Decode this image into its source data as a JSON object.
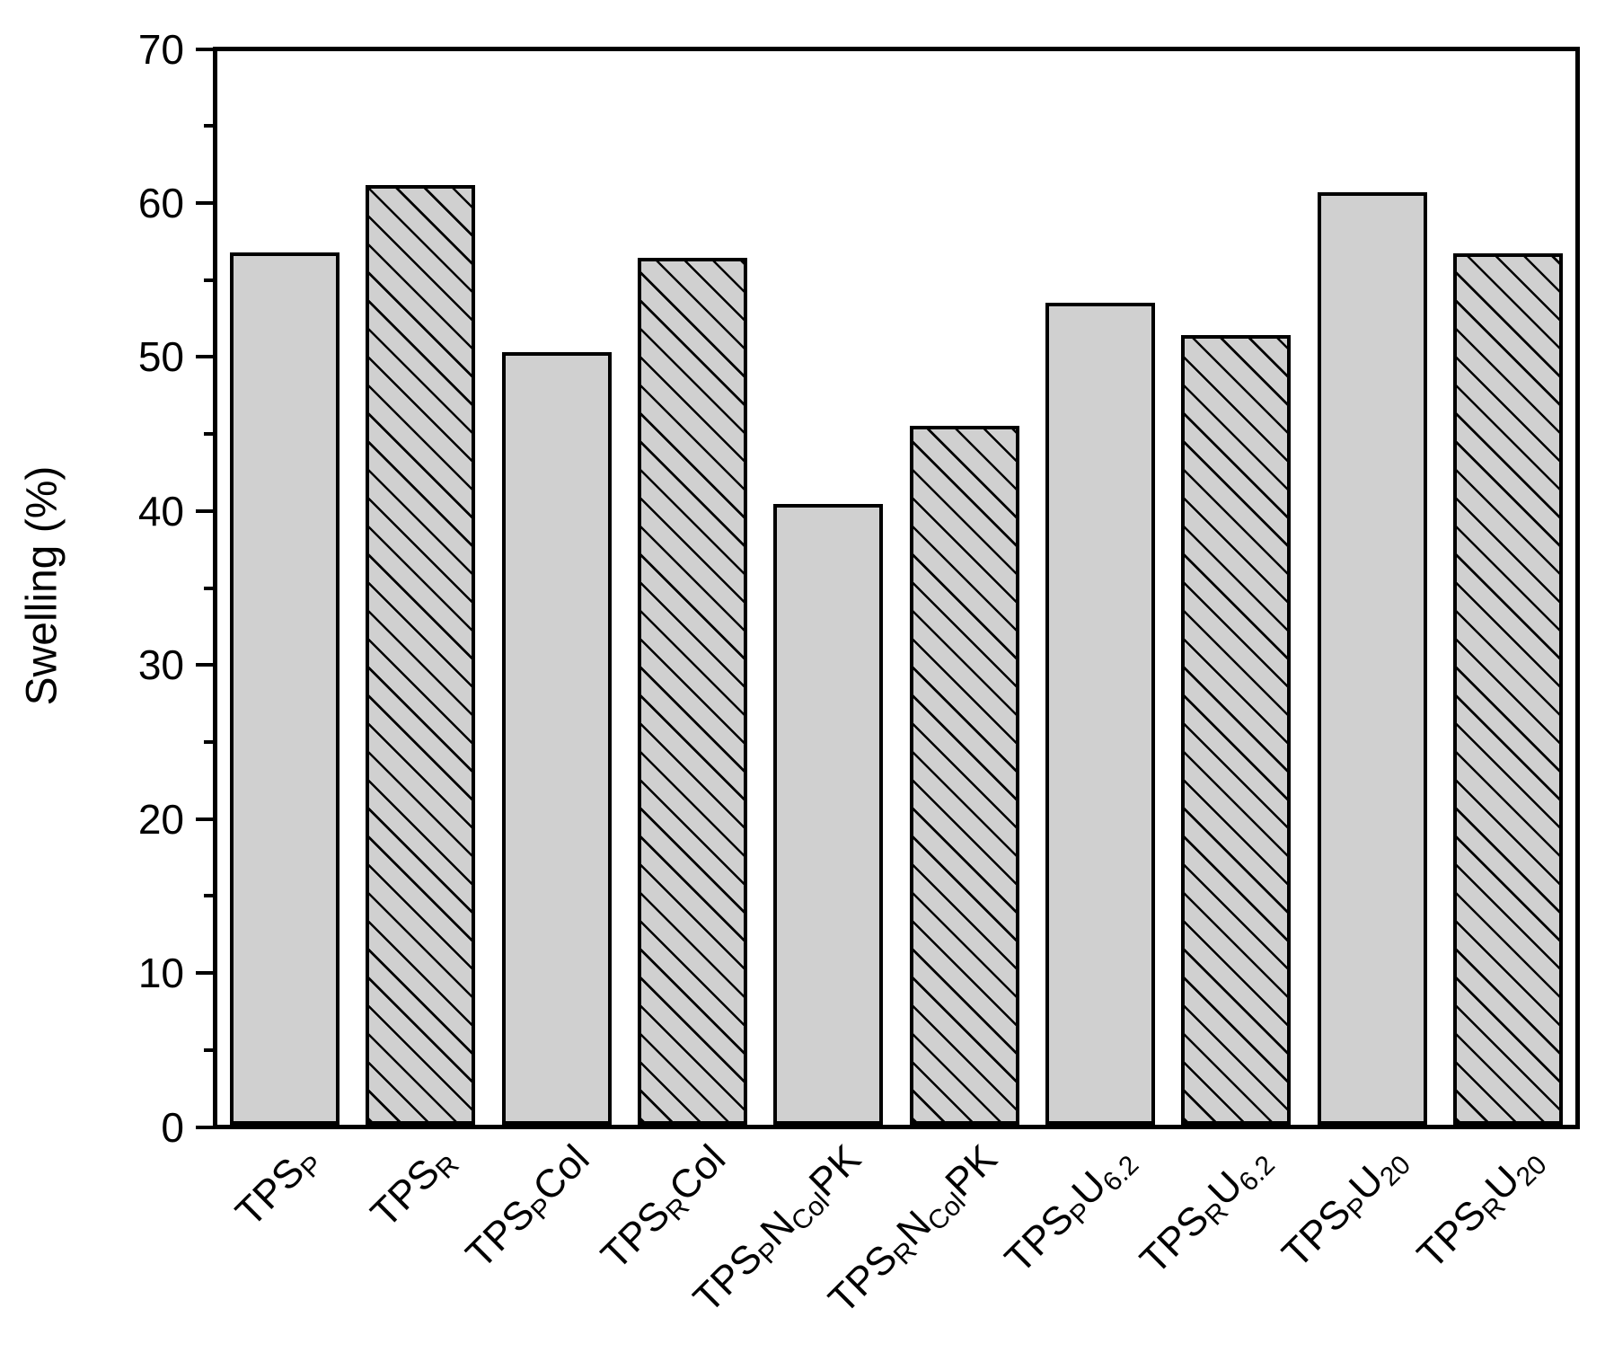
{
  "chart_data": {
    "type": "bar",
    "title": "",
    "xlabel": "",
    "ylabel": "Swelling (%)",
    "ylim": [
      0,
      70
    ],
    "ytick_major_step": 10,
    "ytick_minor_step": 5,
    "ytick_labels": [
      "0",
      "10",
      "20",
      "30",
      "40",
      "50",
      "60",
      "70"
    ],
    "grid": false,
    "legend_position": "none",
    "bar_fill_color": "#d0d0d0",
    "bar_edge_color": "#000000",
    "hatch_color": "#000000",
    "hatch_style": "diagonal-down",
    "categories": [
      "TPS_P",
      "TPS_R",
      "TPS_P Col",
      "TPS_R Col",
      "TPS_P N_Col PK",
      "TPS_R N_Col PK",
      "TPS_P U_6.2",
      "TPS_R U_6.2",
      "TPS_P U_20",
      "TPS_R U_20"
    ],
    "categories_rich": [
      [
        {
          "t": "TPS"
        },
        {
          "t": "P",
          "s": 1
        }
      ],
      [
        {
          "t": "TPS"
        },
        {
          "t": "R",
          "s": 1
        }
      ],
      [
        {
          "t": "TPS"
        },
        {
          "t": "P",
          "s": 1
        },
        {
          "t": "Col"
        }
      ],
      [
        {
          "t": "TPS"
        },
        {
          "t": "R",
          "s": 1
        },
        {
          "t": "Col"
        }
      ],
      [
        {
          "t": "TPS"
        },
        {
          "t": "P",
          "s": 1
        },
        {
          "t": "N"
        },
        {
          "t": "Col",
          "s": 1
        },
        {
          "t": "PK"
        }
      ],
      [
        {
          "t": "TPS"
        },
        {
          "t": "R",
          "s": 1
        },
        {
          "t": "N"
        },
        {
          "t": "Col",
          "s": 1
        },
        {
          "t": "PK"
        }
      ],
      [
        {
          "t": "TPS"
        },
        {
          "t": "P",
          "s": 1
        },
        {
          "t": "U"
        },
        {
          "t": "6.2",
          "s": 1
        }
      ],
      [
        {
          "t": "TPS"
        },
        {
          "t": "R",
          "s": 1
        },
        {
          "t": "U"
        },
        {
          "t": "6.2",
          "s": 1
        }
      ],
      [
        {
          "t": "TPS"
        },
        {
          "t": "P",
          "s": 1
        },
        {
          "t": "U"
        },
        {
          "t": "20",
          "s": 1
        }
      ],
      [
        {
          "t": "TPS"
        },
        {
          "t": "R",
          "s": 1
        },
        {
          "t": "U"
        },
        {
          "t": "20",
          "s": 1
        }
      ]
    ],
    "values": [
      56.9,
      61.3,
      50.4,
      56.5,
      40.5,
      45.6,
      53.6,
      51.5,
      60.8,
      56.8
    ],
    "hatched": [
      false,
      true,
      false,
      true,
      false,
      true,
      false,
      true,
      false,
      true
    ]
  }
}
